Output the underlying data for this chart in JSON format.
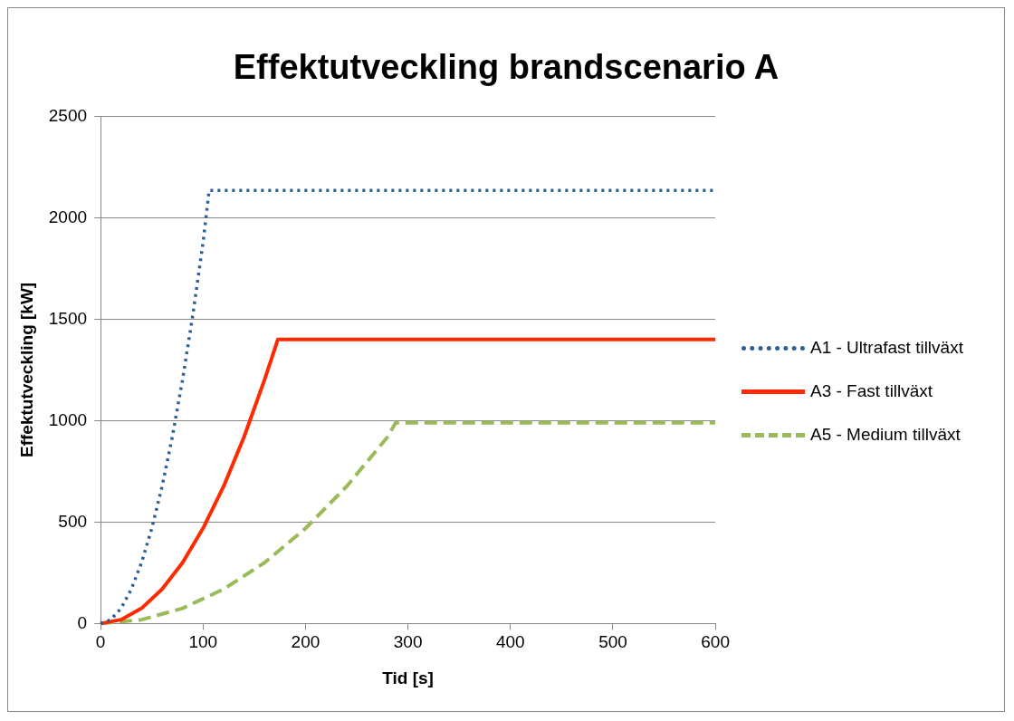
{
  "chart_data": {
    "type": "line",
    "title": "Effektutveckling brandscenario A",
    "xlabel": "Tid [s]",
    "ylabel": "Effektutveckling [kW]",
    "series": [
      {
        "name": "A1 - Ultrafast tillväxt",
        "color": "#2e5f94",
        "line_style": "dotted",
        "x": [
          0,
          10,
          20,
          30,
          40,
          50,
          60,
          70,
          80,
          90,
          100,
          106,
          600
        ],
        "values": [
          0,
          19,
          75,
          169,
          300,
          469,
          675,
          919,
          1201,
          1520,
          1876,
          2135,
          2135
        ]
      },
      {
        "name": "A3 - Fast tillväxt",
        "color": "#ff2a00",
        "line_style": "solid",
        "x": [
          0,
          20,
          40,
          60,
          80,
          100,
          120,
          140,
          160,
          173,
          600
        ],
        "values": [
          0,
          19,
          75,
          169,
          300,
          469,
          675,
          919,
          1201,
          1400,
          1400
        ]
      },
      {
        "name": "A5 - Medium tillväxt",
        "color": "#9bbb59",
        "line_style": "dashed",
        "x": [
          0,
          40,
          80,
          120,
          160,
          200,
          240,
          280,
          288,
          600
        ],
        "values": [
          0,
          19,
          75,
          169,
          300,
          469,
          675,
          919,
          990,
          990
        ]
      }
    ],
    "xlim": [
      0,
      600
    ],
    "xticks": [
      0,
      100,
      200,
      300,
      400,
      500,
      600
    ],
    "ylim": [
      0,
      2500
    ],
    "yticks": [
      0,
      500,
      1000,
      1500,
      2000,
      2500
    ],
    "grid": "y",
    "legend": "right",
    "marker": "none"
  }
}
